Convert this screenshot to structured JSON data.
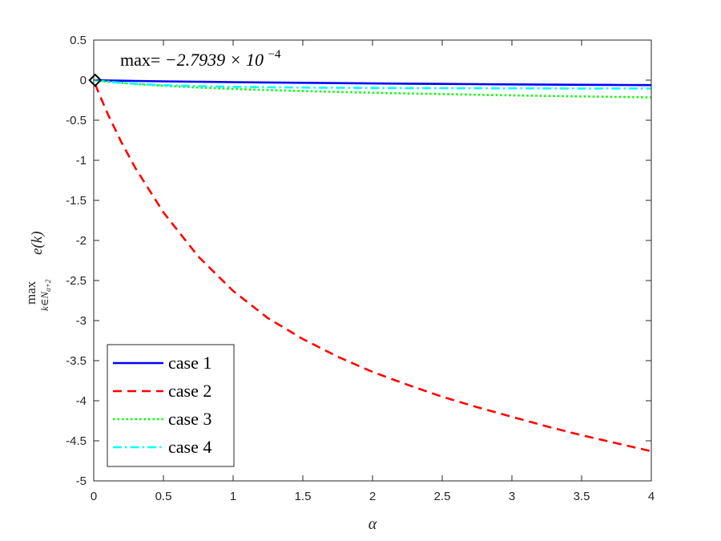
{
  "chart_data": {
    "type": "line",
    "annotation": {
      "prefix": "max=",
      "mantissa": "−2.7939 × 10",
      "exponent": "−4"
    },
    "xlabel": "α",
    "ylabel": {
      "head": "max",
      "sub_main": "k∈N",
      "sub_sub": "α+2",
      "func": "e(k)"
    },
    "xlim": [
      0,
      4
    ],
    "ylim": [
      -5,
      0.5
    ],
    "xticks": [
      0,
      0.5,
      1,
      1.5,
      2,
      2.5,
      3,
      3.5,
      4
    ],
    "xtick_labels": [
      "0",
      "0.5",
      "1",
      "1.5",
      "2",
      "2.5",
      "3",
      "3.5",
      "4"
    ],
    "yticks": [
      0.5,
      0,
      -0.5,
      -1,
      -1.5,
      -2,
      -2.5,
      -3,
      -3.5,
      -4,
      -4.5,
      -5
    ],
    "ytick_labels": [
      "0.5",
      "0",
      "-0.5",
      "-1",
      "-1.5",
      "-2",
      "-2.5",
      "-3",
      "-3.5",
      "-4",
      "-4.5",
      "-5"
    ],
    "grid": false,
    "legend_placement": "bottom-left",
    "marker": {
      "x": 0.01,
      "y": -0.00028,
      "shape": "diamond"
    },
    "x": [
      0.01,
      0.1,
      0.2,
      0.3,
      0.5,
      0.75,
      1,
      1.25,
      1.5,
      1.75,
      2,
      2.25,
      2.5,
      2.75,
      3,
      3.25,
      3.5,
      3.75,
      4
    ],
    "series": [
      {
        "name": "case 1",
        "color": "#0000ff",
        "dash": "solid",
        "values": [
          -0.0003,
          -0.004,
          -0.007,
          -0.01,
          -0.015,
          -0.02,
          -0.025,
          -0.029,
          -0.033,
          -0.037,
          -0.041,
          -0.044,
          -0.047,
          -0.05,
          -0.053,
          -0.056,
          -0.058,
          -0.06,
          -0.062
        ]
      },
      {
        "name": "case 2",
        "color": "#ff0000",
        "dash": "dashed",
        "values": [
          -0.05,
          -0.42,
          -0.78,
          -1.1,
          -1.65,
          -2.2,
          -2.63,
          -2.97,
          -3.23,
          -3.45,
          -3.64,
          -3.8,
          -3.95,
          -4.08,
          -4.2,
          -4.32,
          -4.43,
          -4.53,
          -4.63
        ]
      },
      {
        "name": "case 3",
        "color": "#00ff00",
        "dash": "dotted",
        "values": [
          -0.002,
          -0.02,
          -0.035,
          -0.048,
          -0.07,
          -0.092,
          -0.11,
          -0.124,
          -0.136,
          -0.147,
          -0.157,
          -0.166,
          -0.174,
          -0.182,
          -0.19,
          -0.197,
          -0.203,
          -0.209,
          -0.215
        ]
      },
      {
        "name": "case 4",
        "color": "#00ffff",
        "dash": "dashdot",
        "values": [
          -0.002,
          -0.018,
          -0.033,
          -0.045,
          -0.063,
          -0.075,
          -0.083,
          -0.088,
          -0.092,
          -0.095,
          -0.097,
          -0.099,
          -0.1,
          -0.101,
          -0.102,
          -0.103,
          -0.104,
          -0.104,
          -0.105
        ]
      }
    ]
  }
}
